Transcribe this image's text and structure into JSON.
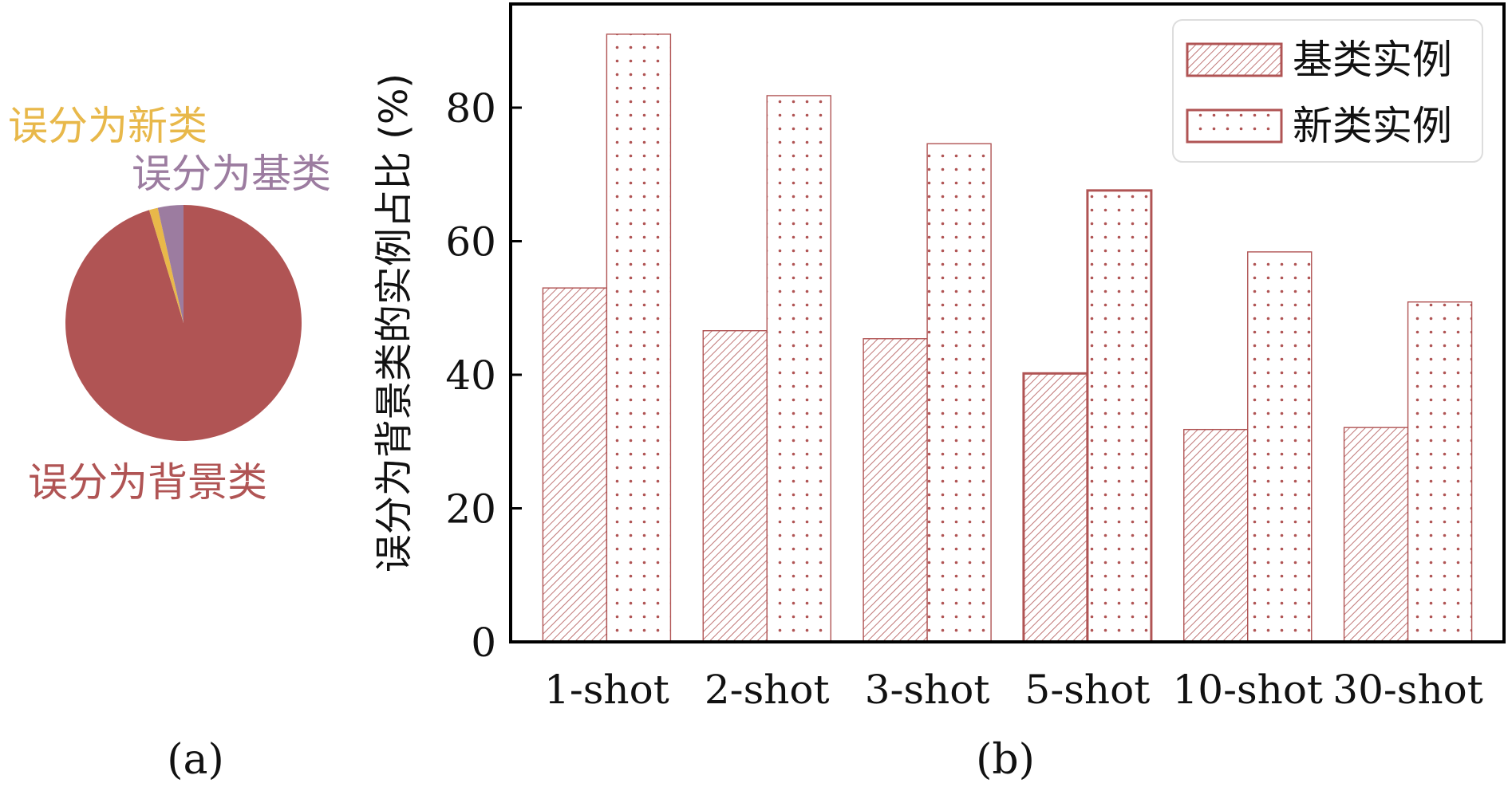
{
  "chart_data": [
    {
      "type": "pie",
      "slices": [
        {
          "label": "误分为背景类",
          "value": 95.3,
          "color": "#b05454"
        },
        {
          "label": "误分为新类",
          "value": 1.2,
          "color": "#e8b84a"
        },
        {
          "label": "误分为基类",
          "value": 3.5,
          "color": "#9c7ca0"
        }
      ],
      "caption": "(a)"
    },
    {
      "type": "bar",
      "categories": [
        "1-shot",
        "2-shot",
        "3-shot",
        "5-shot",
        "10-shot",
        "30-shot"
      ],
      "series": [
        {
          "name": "基类实例",
          "values": [
            53.0,
            46.6,
            45.4,
            40.2,
            31.8,
            32.1
          ],
          "pattern": "hatch",
          "color": "#b05454"
        },
        {
          "name": "新类实例",
          "values": [
            91.0,
            81.8,
            74.6,
            67.6,
            58.4,
            50.9
          ],
          "pattern": "dots",
          "color": "#b05454"
        }
      ],
      "highlighted_category": "5-shot",
      "ylabel": "误分为背景类的实例占比 (%)",
      "ylim": [
        0,
        95
      ],
      "yticks": [
        0,
        20,
        40,
        60,
        80
      ],
      "legend_position": "top-right",
      "grid": false,
      "caption": "(b)"
    }
  ]
}
